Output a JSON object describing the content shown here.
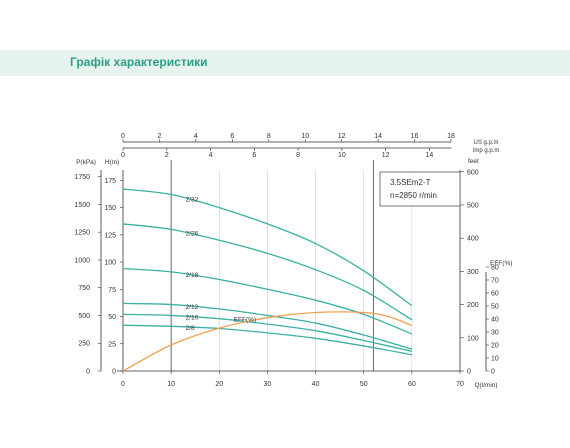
{
  "header": {
    "title": "Графік характеристики"
  },
  "colors": {
    "head_curve": "#3bb0a4",
    "eff_curve": "#f0a050",
    "axis": "#333333",
    "header_band": "#e6f3ef",
    "header_text": "#2f9d86"
  },
  "chart_data": {
    "type": "line",
    "model": "3.5SEm2-T",
    "speed": "n=2850 r/min",
    "xlabel": "Q(l/min)",
    "ylabel_head": "H(m)",
    "ylabel_pressure": "P(kPa)",
    "ylabel_feet": "feet",
    "ylabel_eff": "EFF(%)",
    "top_axis_us_label": "US  g.p.m",
    "top_axis_imp_label": "Imp  g.p.m",
    "xlim": [
      0,
      70
    ],
    "ylim_head": [
      0,
      190
    ],
    "x_ticks": [
      "0",
      "10",
      "20",
      "30",
      "40",
      "50",
      "60",
      "70"
    ],
    "head_ticks": [
      "0",
      "25",
      "50",
      "75",
      "100",
      "125",
      "150",
      "175"
    ],
    "pressure_ticks": [
      "0",
      "250",
      "500",
      "750",
      "1000",
      "1250",
      "1500",
      "1750"
    ],
    "feet_ticks": [
      "0",
      "100",
      "200",
      "300",
      "400",
      "500",
      "600"
    ],
    "eff_ticks": [
      "0",
      "10",
      "20",
      "30",
      "40",
      "50",
      "60",
      "70",
      "80"
    ],
    "us_gpm_ticks": [
      "0",
      "2",
      "4",
      "6",
      "8",
      "10",
      "12",
      "14",
      "16",
      "18"
    ],
    "imp_gpm_ticks": [
      "0",
      "2",
      "4",
      "6",
      "8",
      "10",
      "12",
      "14"
    ],
    "series": [
      {
        "name": "2/32",
        "x": [
          0,
          10,
          20,
          30,
          40,
          50,
          60
        ],
        "y": [
          167,
          162,
          150,
          135,
          117,
          92,
          60
        ]
      },
      {
        "name": "2/26",
        "x": [
          0,
          10,
          20,
          30,
          40,
          50,
          60
        ],
        "y": [
          135,
          130,
          120,
          108,
          93,
          74,
          47
        ]
      },
      {
        "name": "2/18",
        "x": [
          0,
          10,
          20,
          30,
          40,
          50,
          60
        ],
        "y": [
          94,
          91,
          84,
          75,
          65,
          52,
          34
        ]
      },
      {
        "name": "2/12",
        "x": [
          0,
          10,
          20,
          30,
          40,
          50,
          60
        ],
        "y": [
          62,
          61,
          57,
          51,
          44,
          33,
          20
        ]
      },
      {
        "name": "2/10",
        "x": [
          0,
          10,
          20,
          30,
          40,
          50,
          60
        ],
        "y": [
          52,
          51,
          48,
          43,
          37,
          28,
          18
        ]
      },
      {
        "name": "2/8",
        "x": [
          0,
          10,
          20,
          30,
          40,
          50,
          60
        ],
        "y": [
          42,
          41,
          39,
          35,
          30,
          23,
          15
        ]
      }
    ],
    "efficiency": {
      "name": "EFF(%)",
      "x": [
        0,
        10,
        20,
        30,
        40,
        50,
        55,
        60
      ],
      "y": [
        0,
        20,
        33,
        41,
        45,
        45,
        42,
        35
      ]
    },
    "vertical_markers": [
      10,
      52
    ]
  }
}
